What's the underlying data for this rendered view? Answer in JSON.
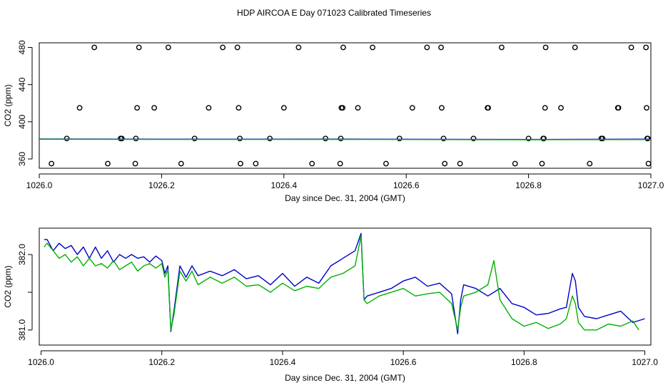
{
  "title": "HDP AIRCOA E  Day 071023  Calibrated Timeseries",
  "colors": {
    "blue": "#0000cc",
    "green": "#00b000",
    "axis": "#000000"
  },
  "chart_data": [
    {
      "type": "scatter",
      "xlabel": "Day since Dec. 31, 2004 (GMT)",
      "ylabel": "CO2 (ppm)",
      "xlim": [
        1026.0,
        1027.0
      ],
      "ylim": [
        350,
        485
      ],
      "x_ticks": [
        1026.0,
        1026.2,
        1026.4,
        1026.6,
        1026.8,
        1027.0
      ],
      "x_tick_labels": [
        "1026.0",
        "1026.2",
        "1026.4",
        "1026.6",
        "1026.8",
        "1027.0"
      ],
      "y_ticks": [
        360,
        400,
        440,
        480
      ],
      "y_tick_labels": [
        "360",
        "400",
        "440",
        "480"
      ],
      "grid": false,
      "series": [
        {
          "kind": "points",
          "points": [
            [
              1026.09,
              480
            ],
            [
              1026.163,
              480
            ],
            [
              1026.211,
              480
            ],
            [
              1026.3,
              480
            ],
            [
              1026.324,
              480
            ],
            [
              1026.424,
              480
            ],
            [
              1026.497,
              480
            ],
            [
              1026.545,
              480
            ],
            [
              1026.634,
              480
            ],
            [
              1026.657,
              480
            ],
            [
              1026.756,
              480
            ],
            [
              1026.828,
              480
            ],
            [
              1026.876,
              480
            ],
            [
              1026.968,
              480
            ],
            [
              1026.992,
              480
            ],
            [
              1026.066,
              415
            ],
            [
              1026.16,
              415
            ],
            [
              1026.188,
              415
            ],
            [
              1026.277,
              415
            ],
            [
              1026.326,
              415
            ],
            [
              1026.4,
              415
            ],
            [
              1026.494,
              415
            ],
            [
              1026.496,
              415
            ],
            [
              1026.521,
              415
            ],
            [
              1026.61,
              415
            ],
            [
              1026.658,
              415
            ],
            [
              1026.733,
              415
            ],
            [
              1026.734,
              415
            ],
            [
              1026.827,
              415
            ],
            [
              1026.853,
              415
            ],
            [
              1026.946,
              415
            ],
            [
              1026.947,
              415
            ],
            [
              1026.993,
              415
            ],
            [
              1026.045,
              382
            ],
            [
              1026.133,
              382
            ],
            [
              1026.135,
              382
            ],
            [
              1026.158,
              382
            ],
            [
              1026.254,
              382
            ],
            [
              1026.328,
              382
            ],
            [
              1026.377,
              382
            ],
            [
              1026.468,
              382
            ],
            [
              1026.493,
              382
            ],
            [
              1026.589,
              382
            ],
            [
              1026.661,
              382
            ],
            [
              1026.71,
              382
            ],
            [
              1026.8,
              382
            ],
            [
              1026.824,
              382
            ],
            [
              1026.825,
              382
            ],
            [
              1026.919,
              382
            ],
            [
              1026.921,
              382
            ],
            [
              1026.994,
              382
            ],
            [
              1026.995,
              382
            ],
            [
              1026.02,
              355
            ],
            [
              1026.112,
              355
            ],
            [
              1026.157,
              355
            ],
            [
              1026.232,
              355
            ],
            [
              1026.329,
              355
            ],
            [
              1026.354,
              355
            ],
            [
              1026.446,
              355
            ],
            [
              1026.492,
              355
            ],
            [
              1026.567,
              355
            ],
            [
              1026.663,
              355
            ],
            [
              1026.688,
              355
            ],
            [
              1026.778,
              355
            ],
            [
              1026.822,
              355
            ],
            [
              1026.9,
              355
            ],
            [
              1026.996,
              355
            ]
          ]
        },
        {
          "kind": "line",
          "color": "#0000cc",
          "x": [
            1026.0,
            1026.2,
            1026.5,
            1026.8,
            1027.0
          ],
          "y": [
            381.5,
            381.3,
            381.4,
            381.0,
            381.3
          ]
        },
        {
          "kind": "line",
          "color": "#00b000",
          "x": [
            1026.0,
            1026.2,
            1026.5,
            1026.8,
            1027.0
          ],
          "y": [
            381.2,
            381.0,
            381.1,
            380.7,
            380.9
          ]
        }
      ]
    },
    {
      "type": "line",
      "xlabel": "Day since Dec. 31, 2004 (GMT)",
      "ylabel": "CO2 (ppm)",
      "xlim": [
        1025.997,
        1027.01
      ],
      "ylim": [
        380.8,
        382.35
      ],
      "x_ticks": [
        1026.0,
        1026.2,
        1026.4,
        1026.6,
        1026.8,
        1027.0
      ],
      "x_tick_labels": [
        "1026.0",
        "1026.2",
        "1026.4",
        "1026.6",
        "1026.8",
        "1027.0"
      ],
      "y_ticks": [
        381.0,
        381.5,
        382.0
      ],
      "y_tick_labels": [
        "381.0",
        "",
        "382.0"
      ],
      "grid": false,
      "series": [
        {
          "color": "#0000cc",
          "x": [
            1026.005,
            1026.01,
            1026.02,
            1026.03,
            1026.04,
            1026.05,
            1026.06,
            1026.07,
            1026.08,
            1026.09,
            1026.1,
            1026.11,
            1026.12,
            1026.13,
            1026.14,
            1026.15,
            1026.16,
            1026.17,
            1026.18,
            1026.19,
            1026.2,
            1026.205,
            1026.21,
            1026.215,
            1026.22,
            1026.23,
            1026.24,
            1026.25,
            1026.26,
            1026.28,
            1026.3,
            1026.32,
            1026.34,
            1026.36,
            1026.38,
            1026.4,
            1026.42,
            1026.44,
            1026.46,
            1026.48,
            1026.5,
            1026.52,
            1026.53,
            1026.535,
            1026.54,
            1026.56,
            1026.58,
            1026.6,
            1026.62,
            1026.64,
            1026.66,
            1026.68,
            1026.69,
            1026.695,
            1026.7,
            1026.72,
            1026.74,
            1026.76,
            1026.78,
            1026.8,
            1026.82,
            1026.84,
            1026.86,
            1026.87,
            1026.88,
            1026.885,
            1026.89,
            1026.9,
            1026.92,
            1026.94,
            1026.96,
            1026.98,
            1027.0
          ],
          "y": [
            382.2,
            382.2,
            382.05,
            382.15,
            382.08,
            382.12,
            382.0,
            382.1,
            381.95,
            382.1,
            381.95,
            382.05,
            381.9,
            382.0,
            381.95,
            382.0,
            381.95,
            381.97,
            381.9,
            381.98,
            381.92,
            381.75,
            381.85,
            380.98,
            381.25,
            381.85,
            381.7,
            381.85,
            381.72,
            381.78,
            381.72,
            381.8,
            381.68,
            381.72,
            381.6,
            381.75,
            381.58,
            381.7,
            381.62,
            381.85,
            381.95,
            382.05,
            382.28,
            381.4,
            381.45,
            381.5,
            381.55,
            381.65,
            381.7,
            381.58,
            381.62,
            381.48,
            380.95,
            381.4,
            381.6,
            381.55,
            381.45,
            381.55,
            381.35,
            381.3,
            381.2,
            381.22,
            381.28,
            381.3,
            381.75,
            381.65,
            381.3,
            381.18,
            381.15,
            381.2,
            381.25,
            381.1,
            381.15
          ]
        },
        {
          "color": "#00b000",
          "x": [
            1026.005,
            1026.01,
            1026.02,
            1026.03,
            1026.04,
            1026.05,
            1026.06,
            1026.07,
            1026.08,
            1026.09,
            1026.1,
            1026.11,
            1026.12,
            1026.13,
            1026.14,
            1026.15,
            1026.16,
            1026.17,
            1026.18,
            1026.19,
            1026.2,
            1026.205,
            1026.21,
            1026.215,
            1026.22,
            1026.23,
            1026.24,
            1026.25,
            1026.26,
            1026.28,
            1026.3,
            1026.32,
            1026.34,
            1026.36,
            1026.38,
            1026.4,
            1026.42,
            1026.44,
            1026.46,
            1026.48,
            1026.5,
            1026.52,
            1026.53,
            1026.535,
            1026.54,
            1026.56,
            1026.58,
            1026.6,
            1026.62,
            1026.64,
            1026.66,
            1026.68,
            1026.69,
            1026.695,
            1026.7,
            1026.72,
            1026.74,
            1026.75,
            1026.76,
            1026.78,
            1026.8,
            1026.82,
            1026.84,
            1026.86,
            1026.87,
            1026.88,
            1026.885,
            1026.89,
            1026.9,
            1026.92,
            1026.94,
            1026.96,
            1026.98,
            1026.99
          ],
          "y": [
            382.1,
            382.15,
            382.05,
            381.95,
            382.0,
            381.9,
            381.97,
            381.85,
            381.95,
            381.85,
            381.88,
            381.82,
            381.92,
            381.8,
            381.85,
            381.9,
            381.78,
            381.85,
            381.88,
            381.82,
            381.88,
            381.7,
            381.8,
            381.0,
            381.2,
            381.78,
            381.65,
            381.78,
            381.6,
            381.7,
            381.62,
            381.7,
            381.58,
            381.6,
            381.5,
            381.62,
            381.52,
            381.58,
            381.55,
            381.7,
            381.75,
            381.85,
            382.25,
            381.4,
            381.35,
            381.45,
            381.5,
            381.55,
            381.45,
            381.48,
            381.5,
            381.35,
            381.0,
            381.3,
            381.45,
            381.5,
            381.6,
            381.92,
            381.4,
            381.15,
            381.05,
            381.1,
            381.02,
            381.08,
            381.15,
            381.45,
            381.35,
            381.1,
            381.0,
            381.0,
            381.08,
            381.05,
            381.12,
            381.0
          ]
        }
      ]
    }
  ]
}
